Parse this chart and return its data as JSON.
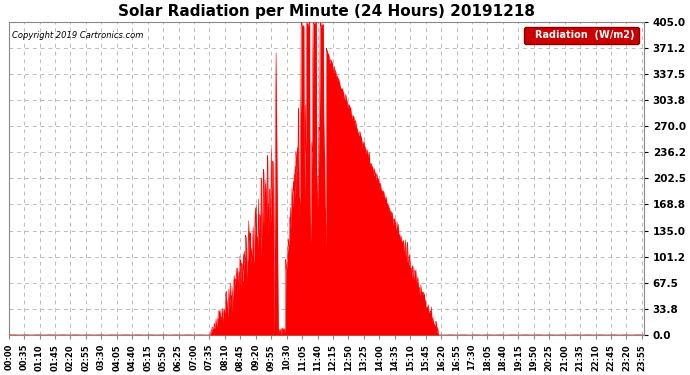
{
  "title": "Solar Radiation per Minute (24 Hours) 20191218",
  "copyright_text": "Copyright 2019 Cartronics.com",
  "legend_label": "Radiation  (W/m2)",
  "yticks": [
    0.0,
    33.8,
    67.5,
    101.2,
    135.0,
    168.8,
    202.5,
    236.2,
    270.0,
    303.8,
    337.5,
    371.2,
    405.0
  ],
  "ymax": 405.0,
  "background_color": "#ffffff",
  "plot_bg_color": "#ffffff",
  "grid_color": "#b0b0b0",
  "fill_color": "#ff0000",
  "legend_bg": "#cc0000",
  "legend_text_color": "#ffffff",
  "title_fontsize": 11,
  "axis_fontsize": 6,
  "ytick_fontsize": 7.5,
  "tick_interval_minutes": 35,
  "sunrise_min": 455,
  "sunset_min": 976,
  "figwidth": 6.9,
  "figheight": 3.75,
  "dpi": 100
}
